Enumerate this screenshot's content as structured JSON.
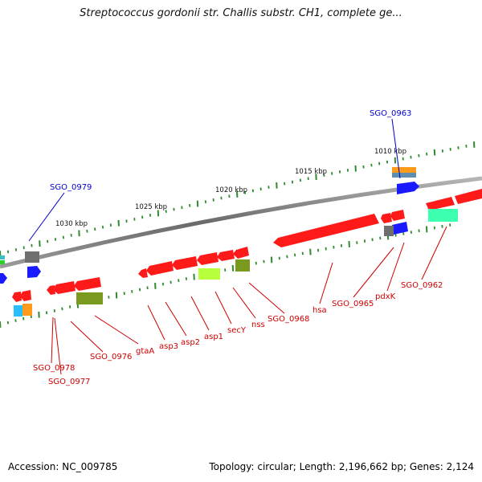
{
  "header": {
    "title": "Streptococcus gordonii str. Challis substr. CH1, complete ge..."
  },
  "footer": {
    "accession": "Accession: NC_009785",
    "topology": "Topology: circular; Length: 2,196,662 bp; Genes: 2,124"
  },
  "colors": {
    "red": "#ff1a1a",
    "blue": "#1a1aff",
    "gray": "#6f6f6f",
    "olive": "#7a9a1e",
    "lime": "#b8ff3c",
    "orange": "#ff9a1a",
    "cyan": "#29bfff",
    "teal": "#3cffb0",
    "green": "#2ad02a",
    "tick": "#2e8b2e",
    "label_red": "#cc0000",
    "label_blue": "#0000cc",
    "backbone": "#808080"
  },
  "scale": {
    "ticks_kbp": [
      {
        "label": "1010 kbp"
      },
      {
        "label": "1015 kbp"
      },
      {
        "label": "1020 kbp"
      },
      {
        "label": "1025 kbp"
      },
      {
        "label": "1030 kbp"
      }
    ]
  },
  "gene_labels": [
    {
      "name": "SGO_0963"
    },
    {
      "name": "SGO_0979"
    },
    {
      "name": "SGO_0962"
    },
    {
      "name": "pdxK"
    },
    {
      "name": "SGO_0965"
    },
    {
      "name": "hsa"
    },
    {
      "name": "SGO_0968"
    },
    {
      "name": "nss"
    },
    {
      "name": "secY"
    },
    {
      "name": "asp1"
    },
    {
      "name": "asp2"
    },
    {
      "name": "asp3"
    },
    {
      "name": "gtaA"
    },
    {
      "name": "SGO_0976"
    },
    {
      "name": "SGO_0978"
    },
    {
      "name": "SGO_0977"
    }
  ]
}
